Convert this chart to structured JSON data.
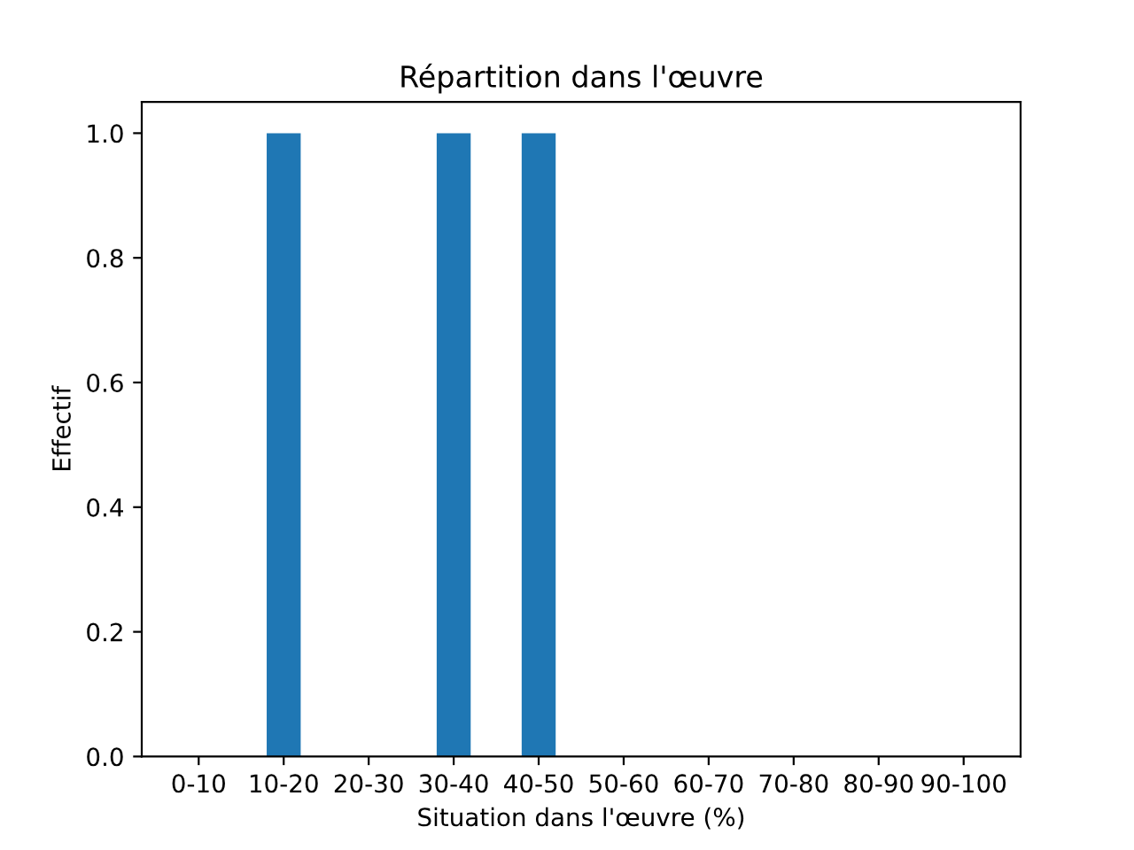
{
  "chart_data": {
    "type": "bar",
    "title": "Répartition dans l'œuvre",
    "xlabel": "Situation dans l'œuvre (%)",
    "ylabel": "Effectif",
    "categories": [
      "0-10",
      "10-20",
      "20-30",
      "30-40",
      "40-50",
      "50-60",
      "60-70",
      "70-80",
      "80-90",
      "90-100"
    ],
    "values": [
      0,
      1,
      0,
      1,
      1,
      0,
      0,
      0,
      0,
      0
    ],
    "color": "#1f77b4",
    "ylim": [
      0,
      1.05
    ],
    "yticks": [
      {
        "value": 0,
        "label": "0.0"
      },
      {
        "value": 0.2,
        "label": "0.2"
      },
      {
        "value": 0.4,
        "label": "0.4"
      },
      {
        "value": 0.6,
        "label": "0.6"
      },
      {
        "value": 0.8,
        "label": "0.8"
      },
      {
        "value": 1.0,
        "label": "1.0"
      }
    ],
    "grid": false,
    "legend": false
  }
}
